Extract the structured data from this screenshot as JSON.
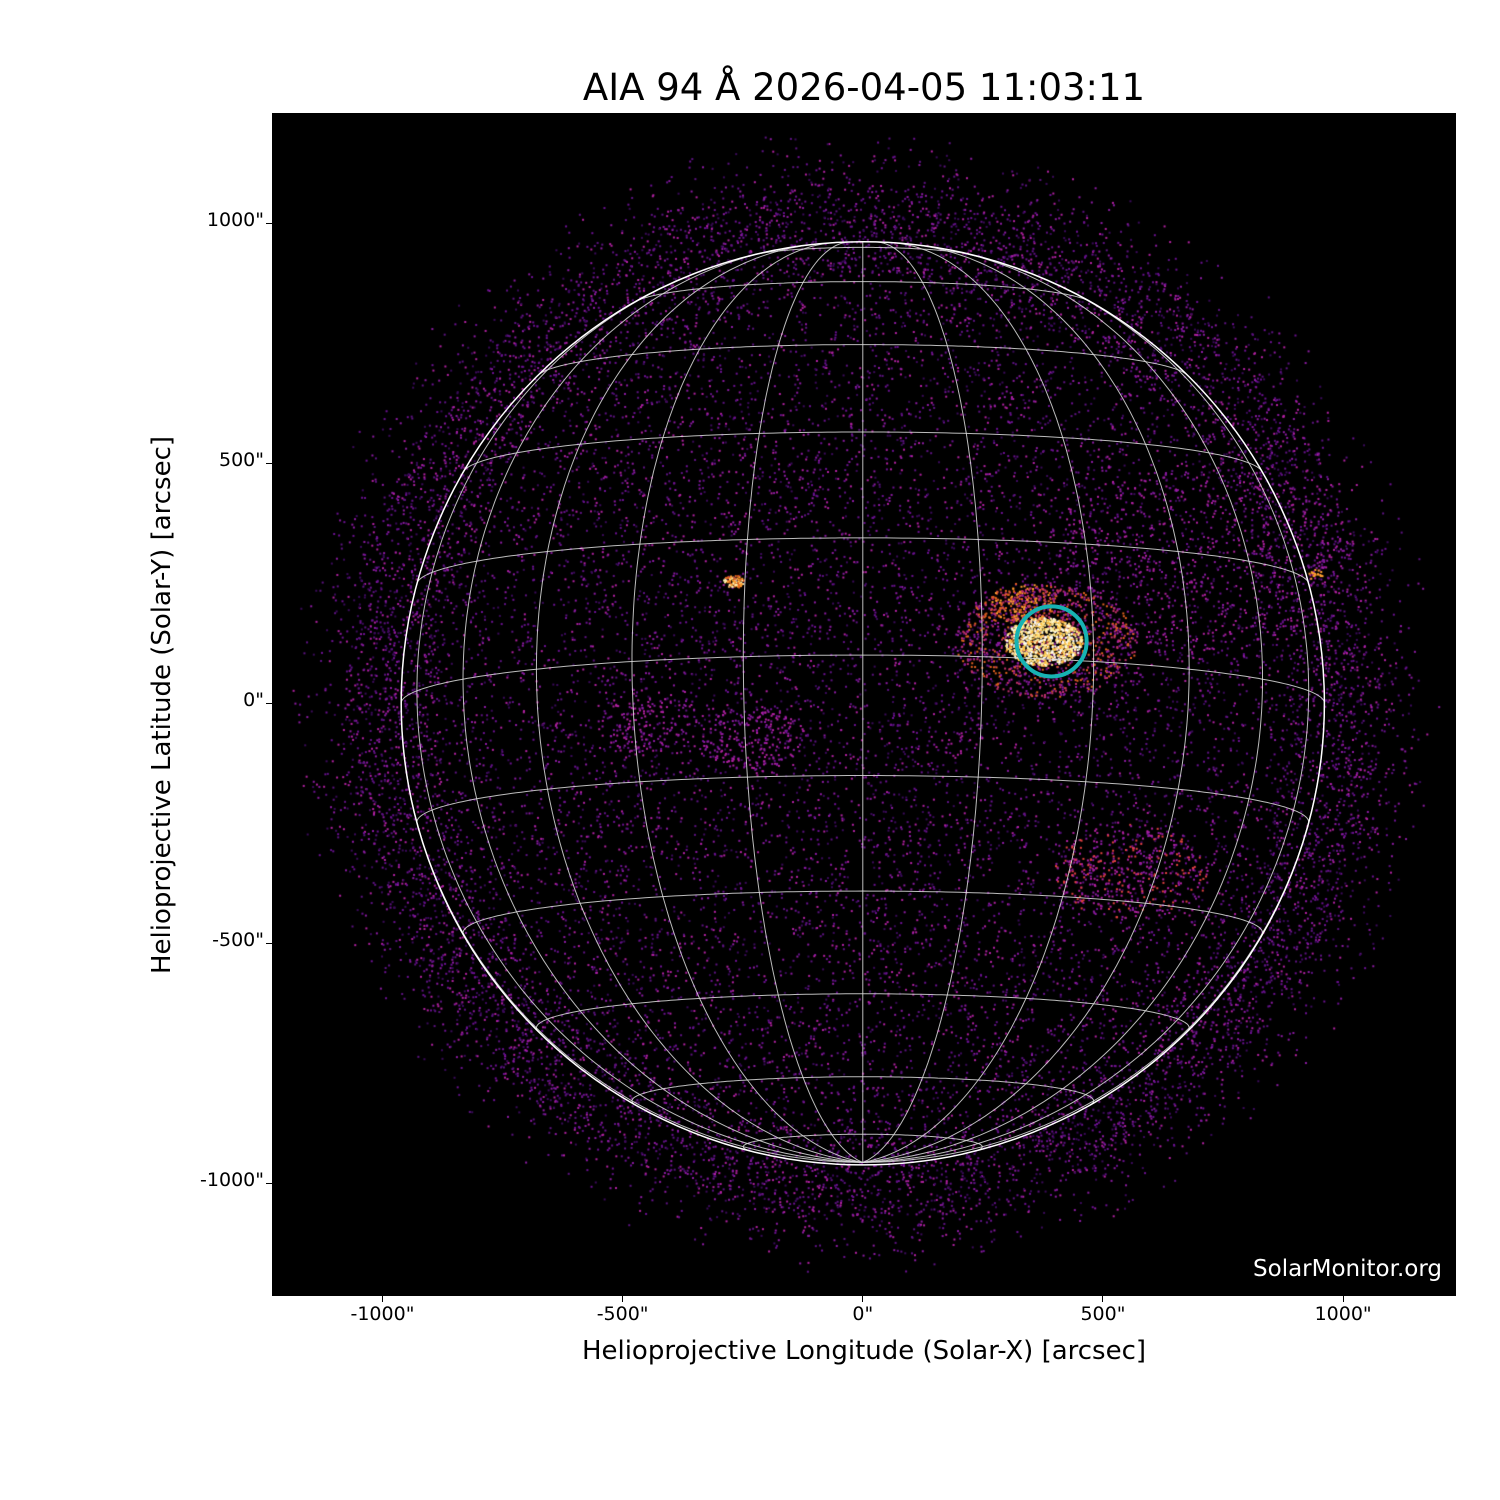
{
  "chart_data": {
    "type": "image",
    "title": "AIA 94 Å 2026-04-05 11:03:11",
    "xlabel": "Helioprojective Longitude (Solar-X) [arcsec]",
    "ylabel": "Helioprojective Latitude (Solar-Y) [arcsec]",
    "xlim": [
      -1230,
      1235
    ],
    "ylim": [
      -1235,
      1230
    ],
    "xticks": [
      {
        "value": -1000,
        "label": "-1000\""
      },
      {
        "value": -500,
        "label": "-500\""
      },
      {
        "value": 0,
        "label": "0\""
      },
      {
        "value": 500,
        "label": "500\""
      },
      {
        "value": 1000,
        "label": "1000\""
      }
    ],
    "yticks": [
      {
        "value": 1000,
        "label": "1000\""
      },
      {
        "value": 500,
        "label": "500\""
      },
      {
        "value": 0,
        "label": "0\""
      },
      {
        "value": -500,
        "label": "-500\""
      },
      {
        "value": -1000,
        "label": "-1000\""
      }
    ],
    "colormap": "sdoaia94",
    "solar_radius_arcsec": 961,
    "grid": {
      "on": true,
      "spacing_deg": 15,
      "color": "#ffffff"
    },
    "b0_deg": -6,
    "highlighted_regions": [
      {
        "x": 393,
        "y": 129,
        "radius_arcsec": 73,
        "color": "#17b3b3"
      }
    ],
    "watermark": "SolarMonitor.org"
  }
}
